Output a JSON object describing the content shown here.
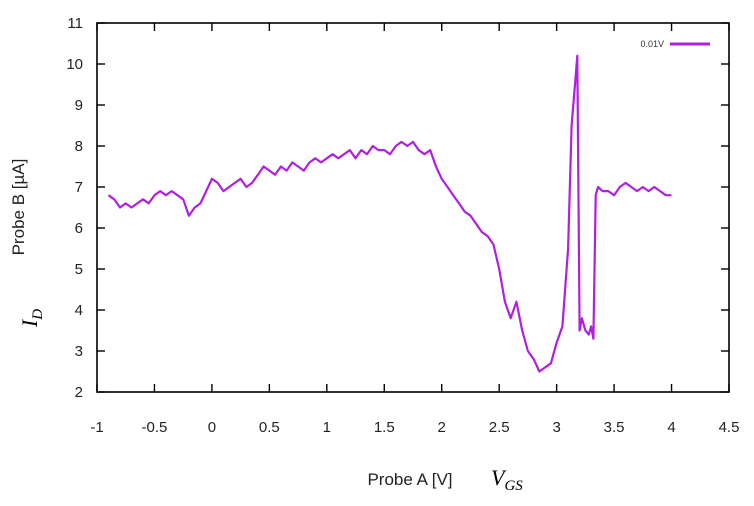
{
  "chart_data": {
    "type": "line",
    "xlabel": "Probe A [V]",
    "ylabel": "Probe B [µA]",
    "xlim": [
      -1,
      4.5
    ],
    "ylim": [
      2,
      11
    ],
    "x_ticks": [
      "-1",
      "-0.5",
      "0",
      "0.5",
      "1",
      "1.5",
      "2",
      "2.5",
      "3",
      "3.5",
      "4",
      "4.5"
    ],
    "y_ticks": [
      "2",
      "3",
      "4",
      "5",
      "6",
      "7",
      "8",
      "9",
      "10",
      "11"
    ],
    "extra_labels": {
      "x_symbol": "V",
      "x_sub": "GS",
      "y_symbol": "I",
      "y_sub": "D"
    },
    "legend_position": "top-right",
    "grid": false,
    "series": [
      {
        "name": "0.01V",
        "color": "#b020e0",
        "x": [
          -0.9,
          -0.85,
          -0.8,
          -0.75,
          -0.7,
          -0.65,
          -0.6,
          -0.55,
          -0.5,
          -0.45,
          -0.4,
          -0.35,
          -0.3,
          -0.25,
          -0.2,
          -0.15,
          -0.1,
          -0.05,
          0.0,
          0.05,
          0.1,
          0.15,
          0.2,
          0.25,
          0.3,
          0.35,
          0.4,
          0.45,
          0.5,
          0.55,
          0.6,
          0.65,
          0.7,
          0.75,
          0.8,
          0.85,
          0.9,
          0.95,
          1.0,
          1.05,
          1.1,
          1.15,
          1.2,
          1.25,
          1.3,
          1.35,
          1.4,
          1.45,
          1.5,
          1.55,
          1.6,
          1.65,
          1.7,
          1.75,
          1.8,
          1.85,
          1.9,
          1.95,
          2.0,
          2.05,
          2.1,
          2.15,
          2.2,
          2.25,
          2.3,
          2.35,
          2.4,
          2.45,
          2.5,
          2.55,
          2.6,
          2.65,
          2.7,
          2.75,
          2.8,
          2.85,
          2.9,
          2.95,
          3.0,
          3.05,
          3.1,
          3.13,
          3.16,
          3.18,
          3.2,
          3.22,
          3.25,
          3.28,
          3.3,
          3.32,
          3.34,
          3.36,
          3.4,
          3.45,
          3.5,
          3.55,
          3.6,
          3.65,
          3.7,
          3.75,
          3.8,
          3.85,
          3.9,
          3.95,
          4.0
        ],
        "y": [
          6.8,
          6.7,
          6.5,
          6.6,
          6.5,
          6.6,
          6.7,
          6.6,
          6.8,
          6.9,
          6.8,
          6.9,
          6.8,
          6.7,
          6.3,
          6.5,
          6.6,
          6.9,
          7.2,
          7.1,
          6.9,
          7.0,
          7.1,
          7.2,
          7.0,
          7.1,
          7.3,
          7.5,
          7.4,
          7.3,
          7.5,
          7.4,
          7.6,
          7.5,
          7.4,
          7.6,
          7.7,
          7.6,
          7.7,
          7.8,
          7.7,
          7.8,
          7.9,
          7.7,
          7.9,
          7.8,
          8.0,
          7.9,
          7.9,
          7.8,
          8.0,
          8.1,
          8.0,
          8.1,
          7.9,
          7.8,
          7.9,
          7.5,
          7.2,
          7.0,
          6.8,
          6.6,
          6.4,
          6.3,
          6.1,
          5.9,
          5.8,
          5.6,
          5.0,
          4.2,
          3.8,
          4.2,
          3.5,
          3.0,
          2.8,
          2.5,
          2.6,
          2.7,
          3.2,
          3.6,
          5.5,
          8.5,
          9.5,
          10.2,
          3.5,
          3.8,
          3.5,
          3.4,
          3.6,
          3.3,
          6.8,
          7.0,
          6.9,
          6.9,
          6.8,
          7.0,
          7.1,
          7.0,
          6.9,
          7.0,
          6.9,
          7.0,
          6.9,
          6.8,
          6.8
        ]
      }
    ]
  }
}
